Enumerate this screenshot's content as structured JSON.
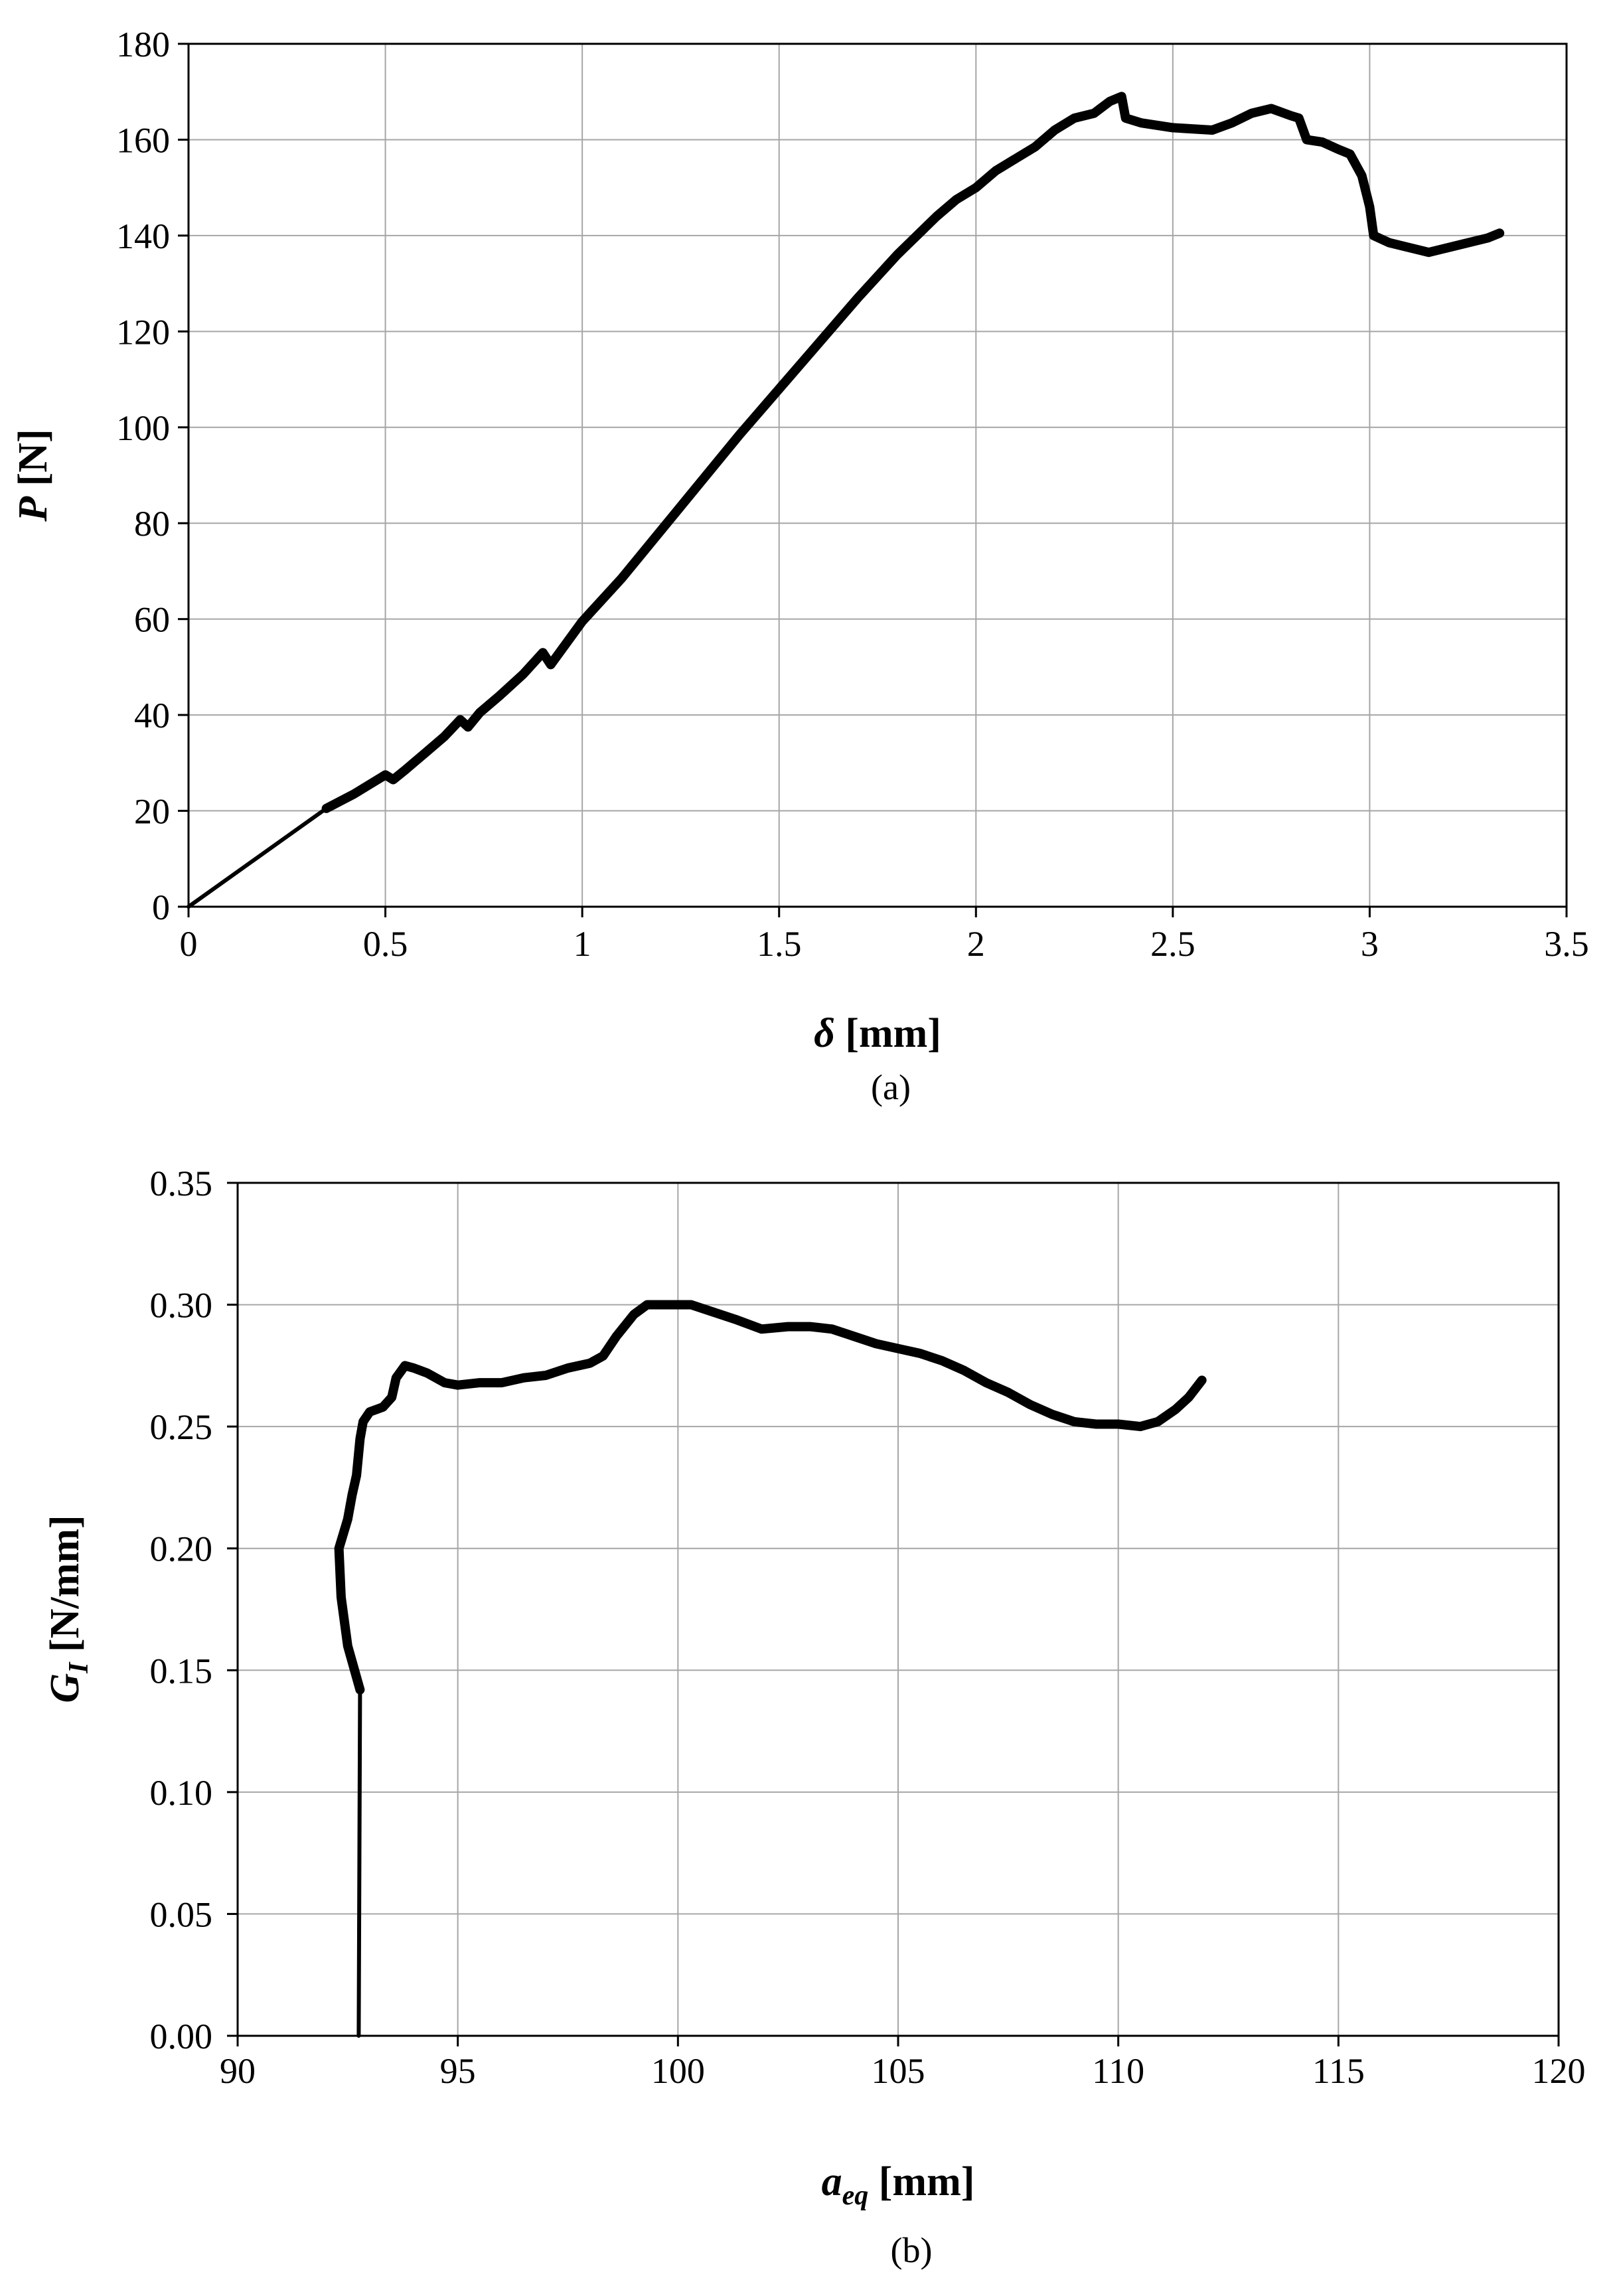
{
  "chart_data": [
    {
      "type": "line",
      "xlabel": "δ [mm]",
      "xlabel_italic": "δ",
      "xlabel_unit": " [mm]",
      "ylabel": "P [N]",
      "ylabel_italic": "P",
      "ylabel_unit": " [N]",
      "caption": "(a)",
      "xlim": [
        0,
        3.5
      ],
      "ylim": [
        0,
        180
      ],
      "xticks": [
        0,
        0.5,
        1,
        1.5,
        2,
        2.5,
        3,
        3.5
      ],
      "xtick_labels": [
        "0",
        "0.5",
        "1",
        "1.5",
        "2",
        "2.5",
        "3",
        "3.5"
      ],
      "yticks": [
        0,
        20,
        40,
        60,
        80,
        100,
        120,
        140,
        160,
        180
      ],
      "ytick_labels": [
        "0",
        "20",
        "40",
        "60",
        "80",
        "100",
        "120",
        "140",
        "160",
        "180"
      ],
      "grid": true,
      "series": [
        {
          "color": "#000000",
          "segments": [
            {
              "style": "thin",
              "points": [
                [
                  0,
                  0
                ],
                [
                  0.35,
                  20.5
                ]
              ]
            },
            {
              "style": "thick",
              "points": [
                [
                  0.35,
                  20.5
                ],
                [
                  0.42,
                  23.5
                ],
                [
                  0.47,
                  26
                ],
                [
                  0.5,
                  27.5
                ],
                [
                  0.52,
                  26.5
                ],
                [
                  0.55,
                  28.5
                ],
                [
                  0.6,
                  32
                ],
                [
                  0.65,
                  35.5
                ],
                [
                  0.69,
                  39
                ],
                [
                  0.71,
                  37.5
                ],
                [
                  0.74,
                  40.5
                ],
                [
                  0.79,
                  44
                ],
                [
                  0.85,
                  48.5
                ],
                [
                  0.9,
                  53
                ],
                [
                  0.92,
                  50.5
                ],
                [
                  0.96,
                  55
                ],
                [
                  1.0,
                  59.5
                ],
                [
                  1.1,
                  68.5
                ],
                [
                  1.2,
                  78.5
                ],
                [
                  1.3,
                  88.5
                ],
                [
                  1.4,
                  98.5
                ],
                [
                  1.5,
                  108
                ],
                [
                  1.6,
                  117.5
                ],
                [
                  1.7,
                  127
                ],
                [
                  1.8,
                  136
                ],
                [
                  1.9,
                  144
                ],
                [
                  1.95,
                  147.5
                ],
                [
                  2.0,
                  150
                ],
                [
                  2.05,
                  153.5
                ],
                [
                  2.1,
                  156
                ],
                [
                  2.15,
                  158.5
                ],
                [
                  2.2,
                  162
                ],
                [
                  2.25,
                  164.5
                ],
                [
                  2.3,
                  165.5
                ],
                [
                  2.34,
                  168
                ],
                [
                  2.37,
                  169
                ],
                [
                  2.38,
                  164.5
                ],
                [
                  2.42,
                  163.5
                ],
                [
                  2.5,
                  162.5
                ],
                [
                  2.6,
                  162
                ],
                [
                  2.65,
                  163.5
                ],
                [
                  2.7,
                  165.5
                ],
                [
                  2.75,
                  166.5
                ],
                [
                  2.8,
                  165
                ],
                [
                  2.82,
                  164.5
                ],
                [
                  2.84,
                  160
                ],
                [
                  2.88,
                  159.5
                ],
                [
                  2.92,
                  158
                ],
                [
                  2.95,
                  157
                ],
                [
                  2.98,
                  152.5
                ],
                [
                  3.0,
                  146
                ],
                [
                  3.01,
                  140
                ],
                [
                  3.05,
                  138.5
                ],
                [
                  3.1,
                  137.5
                ],
                [
                  3.15,
                  136.5
                ],
                [
                  3.2,
                  137.5
                ],
                [
                  3.25,
                  138.5
                ],
                [
                  3.3,
                  139.5
                ],
                [
                  3.33,
                  140.5
                ]
              ]
            }
          ]
        }
      ]
    },
    {
      "type": "line",
      "xlabel": "aeq [mm]",
      "xlabel_italic": "a",
      "xlabel_sub": "eq",
      "xlabel_unit": " [mm]",
      "ylabel": "GI [N/mm]",
      "ylabel_italic": "G",
      "ylabel_sub": "I",
      "ylabel_unit": " [N/mm]",
      "caption": "(b)",
      "xlim": [
        90,
        120
      ],
      "ylim": [
        0,
        0.35
      ],
      "xticks": [
        90,
        95,
        100,
        105,
        110,
        115,
        120
      ],
      "xtick_labels": [
        "90",
        "95",
        "100",
        "105",
        "110",
        "115",
        "120"
      ],
      "yticks": [
        0,
        0.05,
        0.1,
        0.15,
        0.2,
        0.25,
        0.3,
        0.35
      ],
      "ytick_labels": [
        "0.00",
        "0.05",
        "0.10",
        "0.15",
        "0.20",
        "0.25",
        "0.30",
        "0.35"
      ],
      "grid": true,
      "series": [
        {
          "color": "#000000",
          "segments": [
            {
              "style": "thin",
              "points": [
                [
                  92.75,
                  0
                ],
                [
                  92.78,
                  0.142
                ]
              ]
            },
            {
              "style": "thick",
              "points": [
                [
                  92.78,
                  0.142
                ],
                [
                  92.5,
                  0.16
                ],
                [
                  92.35,
                  0.18
                ],
                [
                  92.3,
                  0.2
                ],
                [
                  92.4,
                  0.206
                ],
                [
                  92.5,
                  0.212
                ],
                [
                  92.6,
                  0.222
                ],
                [
                  92.7,
                  0.23
                ],
                [
                  92.78,
                  0.245
                ],
                [
                  92.85,
                  0.252
                ],
                [
                  93.0,
                  0.256
                ],
                [
                  93.3,
                  0.258
                ],
                [
                  93.5,
                  0.262
                ],
                [
                  93.6,
                  0.27
                ],
                [
                  93.8,
                  0.275
                ],
                [
                  94.0,
                  0.274
                ],
                [
                  94.3,
                  0.272
                ],
                [
                  94.7,
                  0.268
                ],
                [
                  95.0,
                  0.267
                ],
                [
                  95.5,
                  0.268
                ],
                [
                  96.0,
                  0.268
                ],
                [
                  96.5,
                  0.27
                ],
                [
                  97.0,
                  0.271
                ],
                [
                  97.5,
                  0.274
                ],
                [
                  98.0,
                  0.276
                ],
                [
                  98.3,
                  0.279
                ],
                [
                  98.6,
                  0.287
                ],
                [
                  99.0,
                  0.296
                ],
                [
                  99.3,
                  0.3
                ],
                [
                  99.8,
                  0.3
                ],
                [
                  100.3,
                  0.3
                ],
                [
                  100.8,
                  0.297
                ],
                [
                  101.3,
                  0.294
                ],
                [
                  101.9,
                  0.29
                ],
                [
                  102.5,
                  0.291
                ],
                [
                  103.0,
                  0.291
                ],
                [
                  103.5,
                  0.29
                ],
                [
                  104.0,
                  0.287
                ],
                [
                  104.5,
                  0.284
                ],
                [
                  105.0,
                  0.282
                ],
                [
                  105.5,
                  0.28
                ],
                [
                  106.0,
                  0.277
                ],
                [
                  106.5,
                  0.273
                ],
                [
                  107.0,
                  0.268
                ],
                [
                  107.5,
                  0.264
                ],
                [
                  108.0,
                  0.259
                ],
                [
                  108.5,
                  0.255
                ],
                [
                  109.0,
                  0.252
                ],
                [
                  109.5,
                  0.251
                ],
                [
                  110.0,
                  0.251
                ],
                [
                  110.5,
                  0.25
                ],
                [
                  110.9,
                  0.252
                ],
                [
                  111.3,
                  0.257
                ],
                [
                  111.6,
                  0.262
                ],
                [
                  111.9,
                  0.269
                ]
              ]
            }
          ]
        }
      ]
    }
  ]
}
